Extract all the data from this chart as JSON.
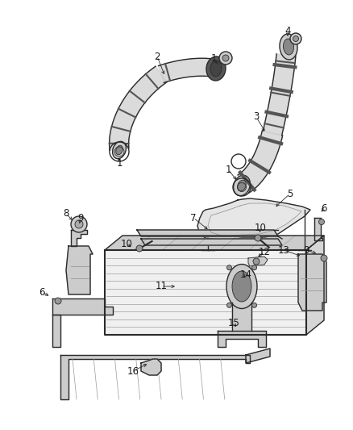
{
  "background_color": "#ffffff",
  "fig_width": 4.38,
  "fig_height": 5.33,
  "dpi": 100,
  "line_color": "#2a2a2a",
  "label_color": "#1a1a1a",
  "label_fontsize": 8.5,
  "gray_fill": "#d8d8d8",
  "dark_fill": "#555555",
  "mid_gray": "#999999",
  "light_gray": "#cccccc"
}
